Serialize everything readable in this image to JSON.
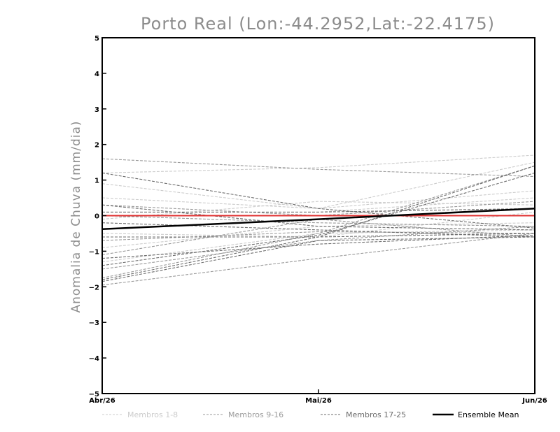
{
  "chart_data": {
    "type": "line",
    "title": "Porto Real (Lon:-44.2952,Lat:-22.4175)",
    "xlabel": "",
    "ylabel": "Anomalia de Chuva (mm/dia)",
    "categories": [
      "Abr/26",
      "Mai/26",
      "Jun/26"
    ],
    "ylim": [
      -5,
      5
    ],
    "yticks": [
      -5,
      -4,
      -3,
      -2,
      -1,
      0,
      1,
      2,
      3,
      4,
      5
    ],
    "reference_line": {
      "value": 0,
      "color": "#e03030"
    },
    "legend": [
      {
        "key": "light",
        "label": "Membros 1-8",
        "color": "#cccccc",
        "style": "dashed"
      },
      {
        "key": "medium",
        "label": "Membros 9-16",
        "color": "#9a9a9a",
        "style": "dashed"
      },
      {
        "key": "dark",
        "label": "Membros 17-25",
        "color": "#6e6e6e",
        "style": "dashed"
      },
      {
        "key": "mean",
        "label": "Ensemble Mean",
        "color": "#000000",
        "style": "solid"
      }
    ],
    "series": [
      {
        "name": "Membro 1",
        "group": "light",
        "values": [
          1.2,
          1.35,
          1.7
        ]
      },
      {
        "name": "Membro 2",
        "group": "light",
        "values": [
          0.9,
          0.2,
          1.5
        ]
      },
      {
        "name": "Membro 3",
        "group": "light",
        "values": [
          0.5,
          0.2,
          0.7
        ]
      },
      {
        "name": "Membro 4",
        "group": "light",
        "values": [
          0.1,
          0.1,
          0.5
        ]
      },
      {
        "name": "Membro 5",
        "group": "light",
        "values": [
          -0.1,
          0.4,
          0.3
        ]
      },
      {
        "name": "Membro 6",
        "group": "light",
        "values": [
          -0.5,
          -0.6,
          0.1
        ]
      },
      {
        "name": "Membro 7",
        "group": "light",
        "values": [
          -0.9,
          -0.3,
          -0.2
        ]
      },
      {
        "name": "Membro 8",
        "group": "light",
        "values": [
          -1.3,
          -0.5,
          -0.4
        ]
      },
      {
        "name": "Membro 9",
        "group": "medium",
        "values": [
          1.6,
          1.3,
          1.1
        ]
      },
      {
        "name": "Membro 10",
        "group": "medium",
        "values": [
          0.3,
          0.0,
          0.4
        ]
      },
      {
        "name": "Membro 11",
        "group": "medium",
        "values": [
          0.0,
          -0.2,
          -0.3
        ]
      },
      {
        "name": "Membro 12",
        "group": "medium",
        "values": [
          -0.7,
          -0.45,
          -0.5
        ]
      },
      {
        "name": "Membro 13",
        "group": "medium",
        "values": [
          -1.1,
          -0.1,
          -0.6
        ]
      },
      {
        "name": "Membro 14",
        "group": "medium",
        "values": [
          -1.5,
          -0.7,
          -0.3
        ]
      },
      {
        "name": "Membro 15",
        "group": "medium",
        "values": [
          -1.75,
          -0.5,
          1.4
        ]
      },
      {
        "name": "Membro 16",
        "group": "medium",
        "values": [
          -1.95,
          -1.2,
          -0.5
        ]
      },
      {
        "name": "Membro 17",
        "group": "dark",
        "values": [
          1.2,
          0.2,
          -0.35
        ]
      },
      {
        "name": "Membro 18",
        "group": "dark",
        "values": [
          0.3,
          -0.3,
          -0.4
        ]
      },
      {
        "name": "Membro 19",
        "group": "dark",
        "values": [
          0.1,
          0.1,
          0.2
        ]
      },
      {
        "name": "Membro 20",
        "group": "dark",
        "values": [
          -0.2,
          -0.4,
          -0.6
        ]
      },
      {
        "name": "Membro 21",
        "group": "dark",
        "values": [
          -0.6,
          -0.6,
          -0.5
        ]
      },
      {
        "name": "Membro 22",
        "group": "dark",
        "values": [
          -1.2,
          -0.8,
          -0.55
        ]
      },
      {
        "name": "Membro 23",
        "group": "dark",
        "values": [
          -1.4,
          -0.55,
          1.2
        ]
      },
      {
        "name": "Membro 24",
        "group": "dark",
        "values": [
          -1.8,
          -0.6,
          1.4
        ]
      },
      {
        "name": "Membro 25",
        "group": "dark",
        "values": [
          -1.85,
          -0.7,
          -0.6
        ]
      },
      {
        "name": "Ensemble Mean",
        "group": "mean",
        "values": [
          -0.38,
          -0.1,
          0.2
        ]
      }
    ]
  }
}
